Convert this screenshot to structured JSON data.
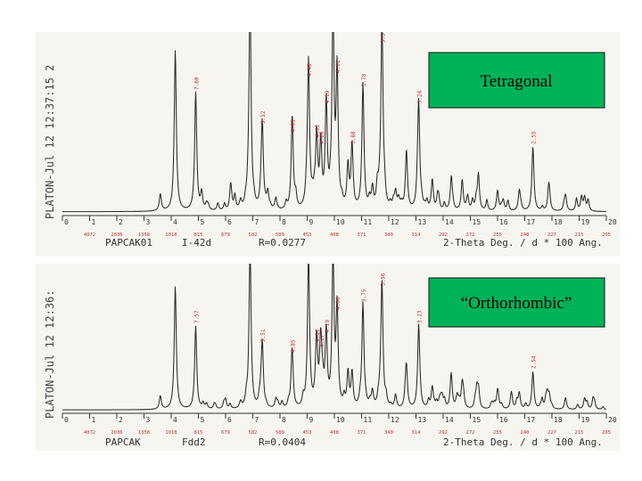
{
  "colors": {
    "background": "#f6f5f0",
    "trace": "#2a2a2a",
    "labels": "#c03030",
    "box": "#00b359"
  },
  "chart_data": [
    {
      "type": "line",
      "box_label": "Tetragonal",
      "header": "PLATON-Jul 12 12:37:15 2",
      "info": {
        "name": "PAPCAK01",
        "space_group": "I-42d",
        "r": "R=0.0277",
        "axis": "2-Theta Deg. / d * 100 Ang."
      },
      "x_ticks": [
        "0",
        "1",
        "2",
        "3",
        "4",
        "5",
        "6",
        "7",
        "8",
        "9",
        "10",
        "11",
        "12",
        "13",
        "14",
        "15",
        "16",
        "17",
        "18",
        "19",
        "20"
      ],
      "d_ticks": [
        "4072",
        "2036",
        "1358",
        "1018",
        "815",
        "679",
        "582",
        "509",
        "453",
        "408",
        "371",
        "340",
        "314",
        "292",
        "272",
        "255",
        "240",
        "227",
        "215",
        "205"
      ],
      "xlim": [
        0,
        20
      ],
      "peaks": [
        {
          "x": 3.6,
          "h": 0.1
        },
        {
          "x": 4.15,
          "h": 0.95
        },
        {
          "x": 4.9,
          "h": 0.7,
          "label": "7.60"
        },
        {
          "x": 5.3,
          "h": 0.04
        },
        {
          "x": 6.55,
          "h": 0.05
        },
        {
          "x": 6.9,
          "h": 1.2
        },
        {
          "x": 7.35,
          "h": 0.5,
          "label": "5.52"
        },
        {
          "x": 7.85,
          "h": 0.07
        },
        {
          "x": 8.45,
          "h": 0.45,
          "label": "4.81"
        },
        {
          "x": 9.05,
          "h": 0.78,
          "label": "4.48"
        },
        {
          "x": 9.35,
          "h": 0.42,
          "label": "4.32"
        },
        {
          "x": 9.5,
          "h": 0.38,
          "label": "4.26"
        },
        {
          "x": 9.7,
          "h": 0.62,
          "label": "4.19"
        },
        {
          "x": 9.95,
          "h": 1.15
        },
        {
          "x": 10.1,
          "h": 0.8,
          "label": "4.01"
        },
        {
          "x": 10.5,
          "h": 0.25
        },
        {
          "x": 10.65,
          "h": 0.38,
          "label": "3.88"
        },
        {
          "x": 11.05,
          "h": 0.72,
          "label": "3.78"
        },
        {
          "x": 11.4,
          "h": 0.12
        },
        {
          "x": 11.75,
          "h": 1.05,
          "label": "3.5"
        },
        {
          "x": 12.25,
          "h": 0.1
        },
        {
          "x": 12.65,
          "h": 0.35
        },
        {
          "x": 13.1,
          "h": 0.62,
          "label": "3.24"
        },
        {
          "x": 13.6,
          "h": 0.18
        },
        {
          "x": 14.3,
          "h": 0.2
        },
        {
          "x": 14.7,
          "h": 0.18
        },
        {
          "x": 15.3,
          "h": 0.15
        },
        {
          "x": 16.0,
          "h": 0.12
        },
        {
          "x": 16.8,
          "h": 0.12
        },
        {
          "x": 17.3,
          "h": 0.38,
          "label": "2.55"
        },
        {
          "x": 17.9,
          "h": 0.1
        },
        {
          "x": 18.5,
          "h": 0.09
        },
        {
          "x": 19.2,
          "h": 0.08
        }
      ]
    },
    {
      "type": "line",
      "box_label": "“Orthorhombic”",
      "header": "PLATON-Jul 12 12:36:",
      "info": {
        "name": "PAPCAK",
        "space_group": "Fdd2",
        "r": "R=0.0404",
        "axis": "2-Theta Deg. / d * 100 Ang."
      },
      "x_ticks": [
        "0",
        "1",
        "2",
        "3",
        "4",
        "5",
        "6",
        "7",
        "8",
        "9",
        "10",
        "11",
        "12",
        "13",
        "14",
        "15",
        "16",
        "17",
        "18",
        "19",
        "20"
      ],
      "d_ticks": [
        "4072",
        "2036",
        "1358",
        "1018",
        "815",
        "679",
        "582",
        "509",
        "453",
        "408",
        "371",
        "340",
        "314",
        "292",
        "272",
        "255",
        "240",
        "227",
        "215",
        "205"
      ],
      "xlim": [
        0,
        20
      ],
      "peaks": [
        {
          "x": 3.6,
          "h": 0.1
        },
        {
          "x": 4.15,
          "h": 0.92
        },
        {
          "x": 4.9,
          "h": 0.62,
          "label": "7.57"
        },
        {
          "x": 5.3,
          "h": 0.04
        },
        {
          "x": 6.55,
          "h": 0.05
        },
        {
          "x": 6.9,
          "h": 1.2
        },
        {
          "x": 7.35,
          "h": 0.48,
          "label": "5.51"
        },
        {
          "x": 7.85,
          "h": 0.07
        },
        {
          "x": 8.45,
          "h": 0.4,
          "label": "4.85"
        },
        {
          "x": 9.05,
          "h": 1.15
        },
        {
          "x": 9.35,
          "h": 0.48,
          "label": "4.31"
        },
        {
          "x": 9.5,
          "h": 0.44,
          "label": "4.27"
        },
        {
          "x": 9.7,
          "h": 0.55,
          "label": "4.19"
        },
        {
          "x": 9.95,
          "h": 1.12
        },
        {
          "x": 10.1,
          "h": 0.72,
          "label": "4.00"
        },
        {
          "x": 10.5,
          "h": 0.2
        },
        {
          "x": 10.65,
          "h": 0.26
        },
        {
          "x": 11.05,
          "h": 0.78,
          "label": "3.75"
        },
        {
          "x": 11.4,
          "h": 0.12
        },
        {
          "x": 11.75,
          "h": 0.9,
          "label": "3.56"
        },
        {
          "x": 12.25,
          "h": 0.1
        },
        {
          "x": 12.65,
          "h": 0.3
        },
        {
          "x": 13.1,
          "h": 0.62,
          "label": "3.23"
        },
        {
          "x": 13.6,
          "h": 0.16
        },
        {
          "x": 14.3,
          "h": 0.2
        },
        {
          "x": 14.7,
          "h": 0.18
        },
        {
          "x": 15.3,
          "h": 0.14
        },
        {
          "x": 16.0,
          "h": 0.12
        },
        {
          "x": 16.8,
          "h": 0.12
        },
        {
          "x": 17.3,
          "h": 0.28,
          "label": "2.54"
        },
        {
          "x": 17.9,
          "h": 0.1
        },
        {
          "x": 18.5,
          "h": 0.09
        },
        {
          "x": 19.2,
          "h": 0.08
        }
      ]
    }
  ]
}
